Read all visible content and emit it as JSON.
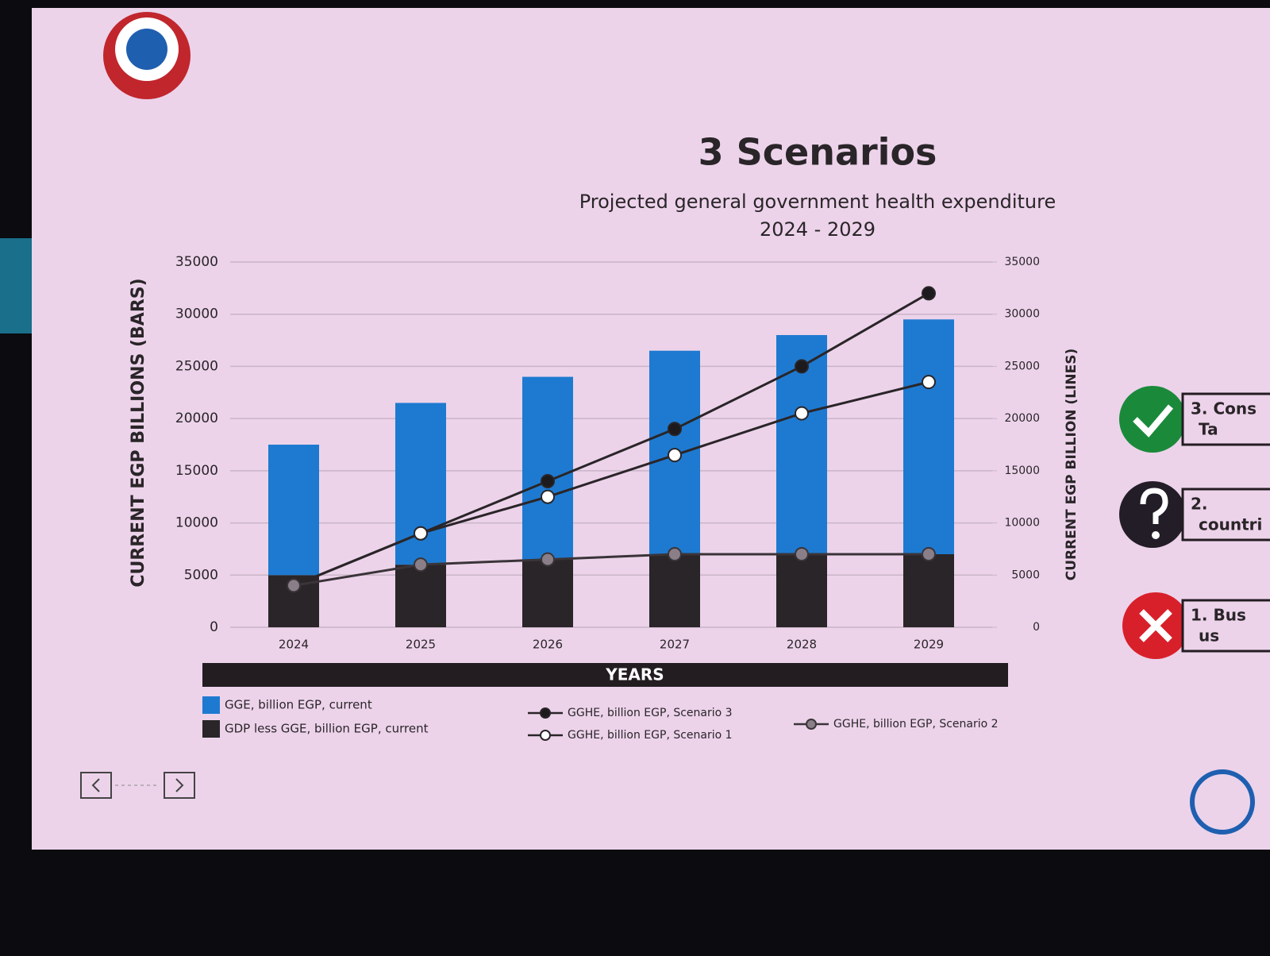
{
  "chart_data": {
    "type": "bar",
    "stacked": true,
    "title": "3 Scenarios",
    "subtitle": [
      "Projected general government health expenditure",
      "2024 - 2029"
    ],
    "x_label": "YEARS",
    "y_label": "CURRENT EGP BILLIONS (BARS)",
    "y2_label": "CURRENT  EGP BILLION (LINES)",
    "categories": [
      "2024",
      "2025",
      "2026",
      "2027",
      "2028",
      "2029"
    ],
    "ylim": [
      0,
      35000
    ],
    "yticks": [
      0,
      5000,
      10000,
      15000,
      20000,
      25000,
      30000,
      35000
    ],
    "y2lim": [
      0,
      35000
    ],
    "y2ticks": [
      0,
      5000,
      10000,
      15000,
      20000,
      25000,
      30000,
      35000
    ],
    "grid": true,
    "series": [
      {
        "name": "GGE, billion EGP, current",
        "type": "bar",
        "color": "#1e7ad0",
        "values": [
          12500,
          15500,
          17500,
          19500,
          21000,
          22500
        ]
      },
      {
        "name": "GDP less GGE, billion EGP, current",
        "type": "bar",
        "color": "#2a2528",
        "values": [
          5000,
          6000,
          6500,
          7000,
          7000,
          7000
        ]
      },
      {
        "name": "GGHE, billion EGP, Scenario 3",
        "type": "line",
        "axis": "y2",
        "color": "#2a2528",
        "marker_color": "#1c1a1d",
        "values": [
          4000,
          9000,
          14000,
          19000,
          25000,
          32000
        ]
      },
      {
        "name": "GGHE, billion EGP, Scenario 1",
        "type": "line",
        "axis": "y2",
        "color": "#2a2528",
        "marker_color": "#ffffff",
        "values": [
          4000,
          9000,
          12500,
          16500,
          20500,
          23500
        ]
      },
      {
        "name": "GGHE, billion EGP, Scenario 2",
        "type": "line",
        "axis": "y2",
        "color": "#3a3438",
        "marker_color": "#8a7f88",
        "values": [
          4000,
          6000,
          6500,
          7000,
          7000,
          7000
        ]
      }
    ]
  },
  "side_panel": {
    "items": [
      {
        "lines": [
          "3. Cons",
          "Ta"
        ]
      },
      {
        "lines": [
          "2.",
          "countri"
        ]
      },
      {
        "lines": [
          "1. Bus",
          "us"
        ]
      }
    ]
  }
}
